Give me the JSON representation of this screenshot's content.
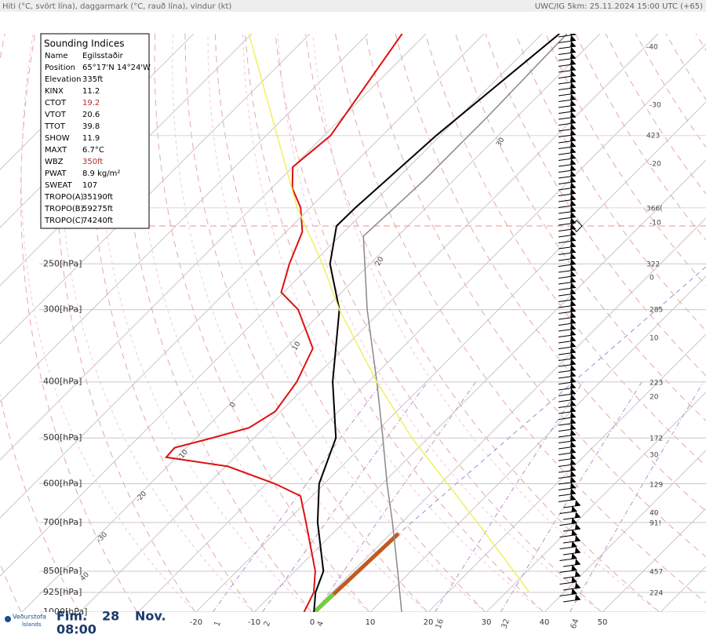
{
  "header": {
    "left": "Hiti (°C, svört lína), daggarmark (°C, rauð lína), vindur (kt)",
    "right": "UWC/IG 5km: 25.11.2024 15:00 UTC (+65)"
  },
  "indices": {
    "title": "Sounding Indices",
    "rows": [
      {
        "label": "Name",
        "value": "Egilsstaðir"
      },
      {
        "label": "Position",
        "value": "65°17'N 14°24'W"
      },
      {
        "label": "Elevation",
        "value": "335ft"
      },
      {
        "label": "KINX",
        "value": "11.2"
      },
      {
        "label": "CTOT",
        "value": "19.2",
        "color": "#b03030"
      },
      {
        "label": "VTOT",
        "value": "20.6"
      },
      {
        "label": "TTOT",
        "value": "39.8"
      },
      {
        "label": "SHOW",
        "value": "11.9"
      },
      {
        "label": "MAXT",
        "value": "6.7°C"
      },
      {
        "label": "WBZ",
        "value": "350ft",
        "color": "#b03030"
      },
      {
        "label": "PWAT",
        "value": "8.9 kg/m²"
      },
      {
        "label": "SWEAT",
        "value": "107"
      },
      {
        "label": "TROPO(A)",
        "value": "35190ft"
      },
      {
        "label": "TROPO(B)",
        "value": "59275ft"
      },
      {
        "label": "TROPO(C)",
        "value": "74240ft"
      }
    ]
  },
  "chart_data": {
    "type": "skewt",
    "ylim": [
      1000,
      100
    ],
    "yticks": [
      {
        "value": 250,
        "label": "250[hPa]"
      },
      {
        "value": 300,
        "label": "300[hPa]"
      },
      {
        "value": 400,
        "label": "400[hPa]"
      },
      {
        "value": 500,
        "label": "500[hPa]"
      },
      {
        "value": 600,
        "label": "600[hPa]"
      },
      {
        "value": 700,
        "label": "700[hPa]"
      },
      {
        "value": 850,
        "label": "850[hPa]"
      },
      {
        "value": 925,
        "label": "925[hPa]"
      },
      {
        "value": 1000,
        "label": "1000[hPa]"
      }
    ],
    "xticks": [
      -20,
      -10,
      0,
      10,
      20,
      30,
      40,
      50
    ],
    "mixing_ratio_ticks": [
      1,
      2,
      4,
      16,
      32,
      64
    ],
    "tropopause_pressure": 215,
    "series": [
      {
        "color": "#000000",
        "pressure": [
          1000,
          925,
          850,
          700,
          600,
          500,
          400,
          300,
          250,
          215,
          200,
          150,
          100
        ],
        "values": [
          0.3,
          -2.8,
          -5.1,
          -14.5,
          -20.9,
          -25.9,
          -36.1,
          -47.4,
          -56.9,
          -62.3,
          -62.2,
          -60.7,
          -57.0
        ]
      },
      {
        "color": "#dd1111",
        "pressure": [
          1000,
          925,
          850,
          700,
          630,
          600,
          560,
          540,
          520,
          500,
          480,
          450,
          400,
          350,
          300,
          280,
          250,
          220,
          200,
          185,
          170,
          150,
          100
        ],
        "values": [
          -1.4,
          -3.1,
          -6.5,
          -16.5,
          -22.0,
          -28.5,
          -39.6,
          -51.8,
          -52.0,
          -47.2,
          -42.6,
          -40.9,
          -42.3,
          -45.3,
          -54.5,
          -60.4,
          -63.9,
          -67.2,
          -71.6,
          -76.4,
          -80.0,
          -78.9,
          -84.1
        ]
      },
      {
        "color": "#888888",
        "pressure": [
          1000,
          850,
          700,
          600,
          500,
          400,
          300,
          224,
          179,
          139,
          100
        ],
        "values": [
          15.4,
          7.7,
          -1.6,
          -9.2,
          -17.8,
          -28.5,
          -42.6,
          -55.9,
          -55.1,
          -55.1,
          -55.7
        ]
      },
      {
        "color": "#f0f060",
        "pressure": [
          925,
          850,
          700,
          600,
          500,
          400,
          300,
          250,
          200,
          150,
          100
        ],
        "values": [
          34,
          27.7,
          13,
          1.2,
          -12.8,
          -28.5,
          -47.4,
          -58.2,
          -72.2,
          -88.1,
          -110.5
        ]
      }
    ],
    "diagram_labels": [
      "30",
      "20",
      "10",
      "0",
      "-10",
      "-20",
      "-30",
      "40"
    ],
    "right_labels": [
      "-40",
      "-30",
      "423",
      "-20",
      "366(",
      "-10",
      "322",
      "0",
      "285",
      "10",
      "223",
      "20",
      "172",
      "30",
      "129",
      "40",
      "91!",
      "457",
      "224"
    ]
  },
  "footer": {
    "logo": [
      "Veðurstofa",
      "Íslands"
    ],
    "day": "Fim.",
    "date": "28",
    "month": "Nov.",
    "time": "08:00"
  }
}
